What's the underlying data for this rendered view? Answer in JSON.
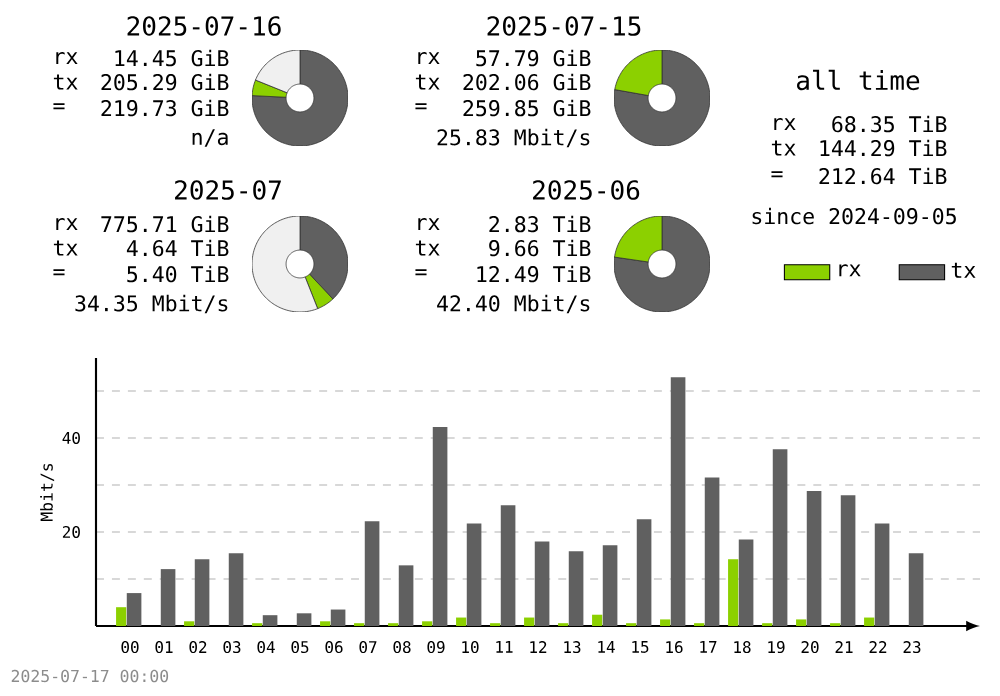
{
  "chart_data": [
    {
      "type": "donut",
      "title": "2025-07-16",
      "categories": [
        null,
        null,
        null
      ],
      "values": [
        75.8,
        5.3,
        18.9
      ],
      "colors": [
        "#606060",
        "#8cd000",
        "#f0f0f0"
      ],
      "annotations": [
        "rx",
        "14.45 GiB",
        "tx",
        "205.29 GiB",
        "=",
        "219.73 GiB",
        "n/a"
      ]
    },
    {
      "type": "donut",
      "title": "2025-07-15",
      "categories": [
        null,
        null
      ],
      "values": [
        77.8,
        22.2
      ],
      "colors": [
        "#606060",
        "#8cd000"
      ],
      "annotations": [
        "rx",
        "57.79 GiB",
        "tx",
        "202.06 GiB",
        "=",
        "259.85 GiB",
        "25.83 Mbit/s"
      ]
    },
    {
      "type": "other",
      "title": "all time",
      "annotations": [
        "rx",
        "68.35 TiB",
        "tx",
        "144.29 TiB",
        "=",
        "212.64 TiB",
        "since 2024-09-05"
      ]
    },
    {
      "type": "donut",
      "title": "2025-07",
      "categories": [
        null,
        null,
        null
      ],
      "values": [
        38,
        6,
        56
      ],
      "colors": [
        "#606060",
        "#8cd000",
        "#f0f0f0"
      ],
      "annotations": [
        "rx",
        "775.71 GiB",
        "tx",
        "4.64 TiB",
        "=",
        "5.40 TiB",
        "34.35 Mbit/s"
      ]
    },
    {
      "type": "donut",
      "title": "2025-06",
      "categories": [
        null,
        null
      ],
      "values": [
        77.3,
        22.7
      ],
      "colors": [
        "#606060",
        "#8cd000"
      ],
      "annotations": [
        "rx",
        "2.83 TiB",
        "tx",
        "9.66 TiB",
        "=",
        "12.49 TiB",
        "42.40 Mbit/s"
      ]
    },
    {
      "type": "bar",
      "ylabel": "Mbit/s",
      "categories": [
        "00",
        "01",
        "02",
        "03",
        "04",
        "05",
        "06",
        "07",
        "08",
        "09",
        "10",
        "11",
        "12",
        "13",
        "14",
        "15",
        "16",
        "17",
        "18",
        "19",
        "20",
        "21",
        "22",
        "23"
      ],
      "series": [
        {
          "name": "rx",
          "color": "#8cd000",
          "values": [
            4.0,
            0,
            1.0,
            0,
            0.6,
            0,
            1.0,
            0.6,
            0.6,
            1.0,
            1.8,
            0.6,
            1.8,
            0.6,
            2.4,
            0.6,
            1.4,
            0.6,
            14.2,
            0.6,
            1.4,
            0.6,
            1.8,
            0
          ]
        },
        {
          "name": "tx",
          "color": "#606060",
          "values": [
            7.0,
            12.1,
            14.2,
            15.5,
            2.3,
            2.7,
            3.5,
            22.3,
            12.9,
            42.3,
            21.8,
            25.7,
            18.0,
            15.9,
            17.2,
            22.7,
            52.9,
            31.6,
            18.4,
            37.6,
            28.7,
            27.8,
            21.8,
            15.5
          ]
        }
      ],
      "ylim": [
        0,
        57
      ],
      "yticks": [
        {
          "value": 10,
          "label": null
        },
        20,
        {
          "value": 30,
          "label": null
        },
        40,
        {
          "value": 50,
          "label": null
        }
      ],
      "grid": "y",
      "legend": "top right",
      "annotations": [
        "2025-07-17 00:00"
      ]
    }
  ]
}
